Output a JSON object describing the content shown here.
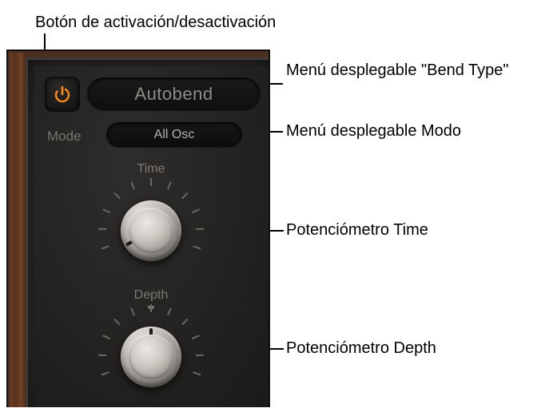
{
  "annotations": {
    "power": "Botón de activación/desactivación",
    "bendType": "Menú desplegable \"Bend Type\"",
    "mode": "Menú desplegable Modo",
    "timeKnob": "Potenciómetro Time",
    "depthKnob": "Potenciómetro Depth"
  },
  "panel": {
    "power_on": true,
    "power_color": "#ff8c1a",
    "bend_type_label": "Autobend",
    "mode_caption": "Mode",
    "mode_value": "All Osc",
    "time_caption": "Time",
    "depth_caption": "Depth",
    "time_angle_deg": -120,
    "depth_angle_deg": 0
  },
  "style": {
    "tick_count": 10,
    "tick_start_deg": -110,
    "tick_end_deg": 110,
    "tick_color": "#6a6763",
    "panel_bg": "#242220",
    "pill_text_color": "#8f8c88",
    "mode_text_color": "#b6b2ad",
    "label_color": "#7d7a76"
  }
}
